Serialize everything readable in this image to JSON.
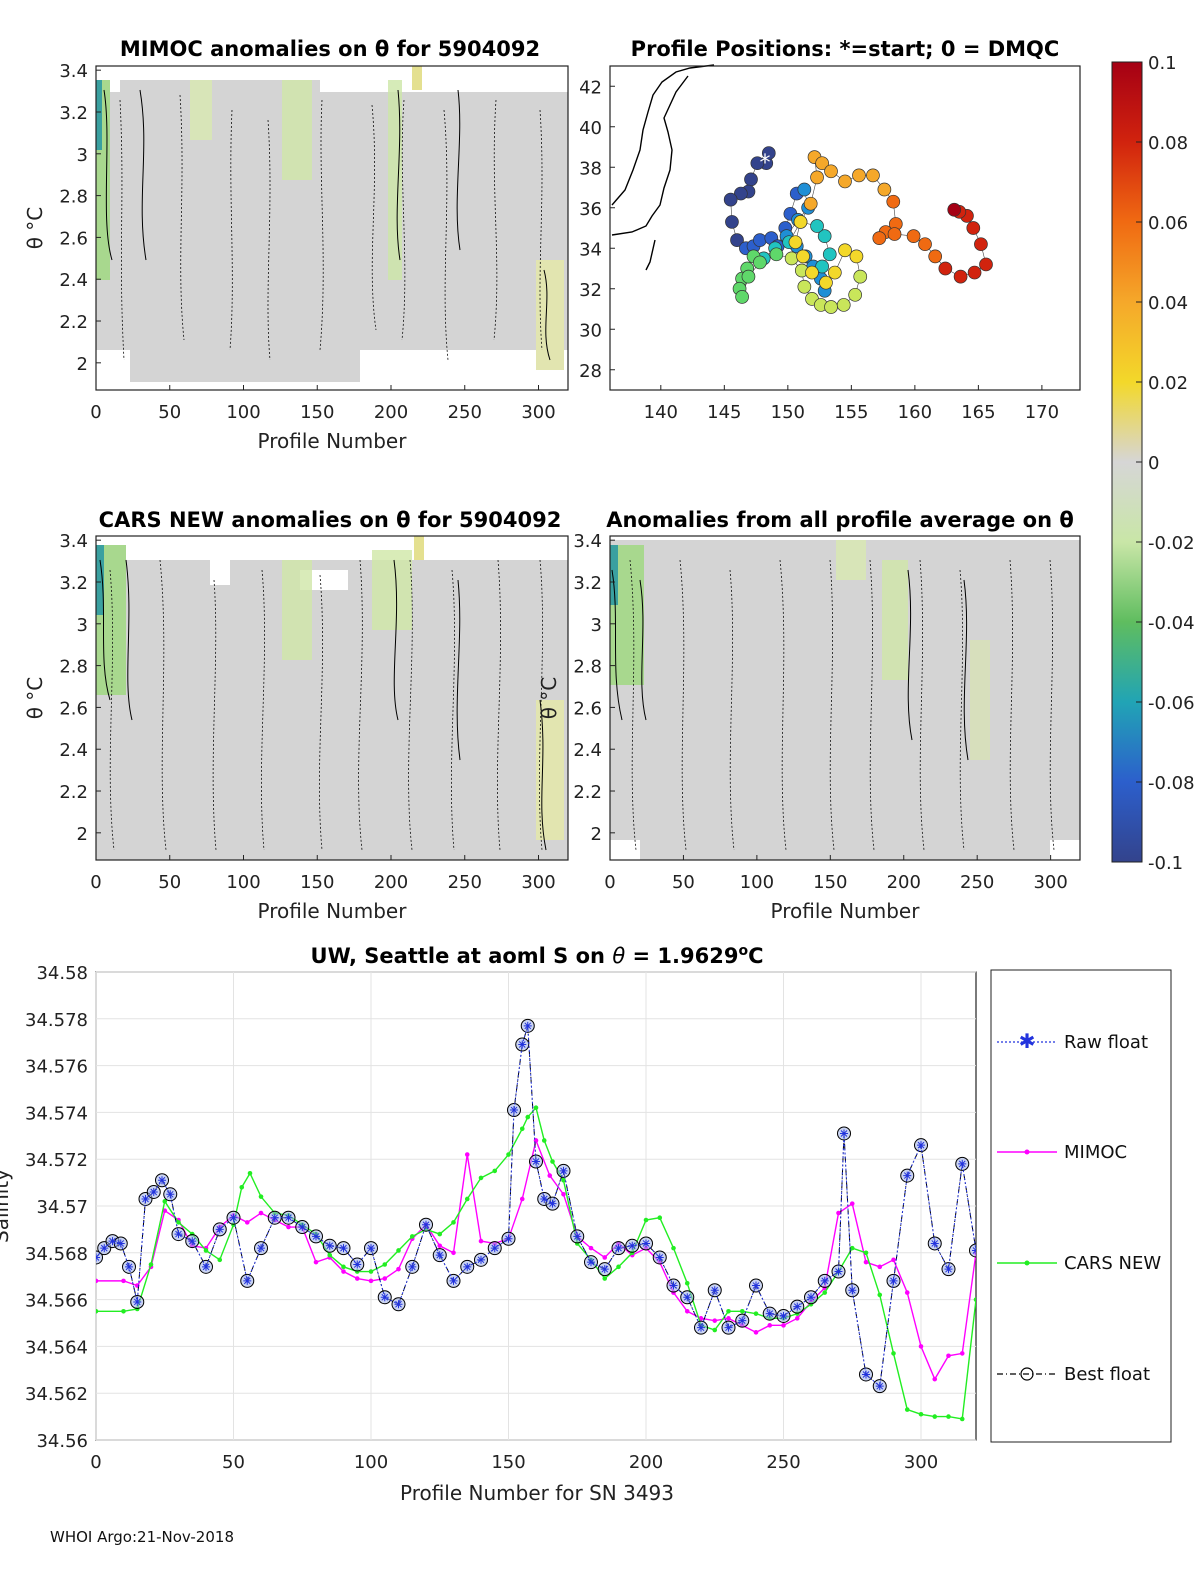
{
  "footer": "WHOI Argo:21-Nov-2018",
  "panels": {
    "mimoc": {
      "title": "MIMOC anomalies on θ  for 5904092",
      "xlabel": "Profile Number",
      "ylabel": "θ °C",
      "xticks": [
        "0",
        "50",
        "100",
        "150",
        "200",
        "250",
        "300"
      ],
      "yticks": [
        "2",
        "2.2",
        "2.4",
        "2.6",
        "2.8",
        "3",
        "3.2",
        "3.4"
      ]
    },
    "positions": {
      "title": "Profile Positions: *=start; 0 = DMQC",
      "xticks": [
        "140",
        "145",
        "150",
        "155",
        "160",
        "165",
        "170"
      ],
      "yticks": [
        "28",
        "30",
        "32",
        "34",
        "36",
        "38",
        "40",
        "42"
      ]
    },
    "cars": {
      "title": "CARS NEW anomalies on θ for 5904092",
      "xlabel": "Profile Number",
      "ylabel": "θ °C",
      "xticks": [
        "0",
        "50",
        "100",
        "150",
        "200",
        "250",
        "300"
      ],
      "yticks": [
        "2",
        "2.2",
        "2.4",
        "2.6",
        "2.8",
        "3",
        "3.2",
        "3.4"
      ]
    },
    "allavg": {
      "title": "Anomalies from all profile average on θ",
      "xlabel": "Profile Number",
      "ylabel": "θ °C",
      "xticks": [
        "0",
        "50",
        "100",
        "150",
        "200",
        "250",
        "300"
      ],
      "yticks": [
        "2",
        "2.2",
        "2.4",
        "2.6",
        "2.8",
        "3",
        "3.2",
        "3.4"
      ]
    },
    "colorbar": {
      "ticks": [
        "0.1",
        "0.08",
        "0.06",
        "0.04",
        "0.02",
        "0",
        "-0.02",
        "-0.04",
        "-0.06",
        "-0.08",
        "-0.1"
      ]
    }
  },
  "chart_data": [
    {
      "type": "heatmap",
      "title": "MIMOC anomalies on θ  for 5904092",
      "xlabel": "Profile Number",
      "ylabel": "θ °C",
      "xlim": [
        0,
        320
      ],
      "ylim": [
        1.87,
        3.42
      ],
      "clim": [
        -0.1,
        0.1
      ]
    },
    {
      "type": "scatter",
      "title": "Profile Positions: *=start; 0 = DMQC",
      "xlim": [
        136,
        173
      ],
      "ylim": [
        27,
        43
      ],
      "track": [
        [
          148.3,
          38.2
        ],
        [
          148.5,
          38.7
        ],
        [
          147.6,
          38.2
        ],
        [
          147.1,
          37.4
        ],
        [
          146.9,
          36.8
        ],
        [
          146.3,
          36.7
        ],
        [
          145.5,
          36.4
        ],
        [
          145.6,
          35.3
        ],
        [
          146.0,
          34.4
        ],
        [
          146.7,
          34.0
        ],
        [
          147.3,
          34.1
        ],
        [
          147.8,
          34.4
        ],
        [
          148.7,
          34.5
        ],
        [
          149.2,
          34.1
        ],
        [
          149.8,
          35.0
        ],
        [
          150.2,
          35.7
        ],
        [
          150.7,
          36.7
        ],
        [
          151.3,
          36.9
        ],
        [
          151.6,
          36.0
        ],
        [
          150.8,
          35.4
        ],
        [
          149.9,
          34.6
        ],
        [
          150.7,
          34.1
        ],
        [
          151.4,
          33.6
        ],
        [
          152.0,
          33.1
        ],
        [
          152.6,
          32.5
        ],
        [
          152.9,
          31.9
        ],
        [
          152.7,
          33.1
        ],
        [
          153.3,
          33.7
        ],
        [
          152.9,
          34.6
        ],
        [
          152.3,
          35.1
        ],
        [
          151.0,
          35.3
        ],
        [
          150.1,
          34.3
        ],
        [
          149.0,
          34.0
        ],
        [
          148.1,
          33.5
        ],
        [
          147.3,
          33.6
        ],
        [
          146.8,
          33.0
        ],
        [
          146.4,
          32.5
        ],
        [
          146.2,
          32.0
        ],
        [
          146.4,
          31.6
        ],
        [
          146.9,
          32.6
        ],
        [
          147.8,
          33.3
        ],
        [
          149.1,
          33.7
        ],
        [
          150.3,
          33.5
        ],
        [
          151.1,
          32.9
        ],
        [
          151.3,
          32.1
        ],
        [
          151.9,
          31.5
        ],
        [
          152.6,
          31.2
        ],
        [
          153.4,
          31.1
        ],
        [
          154.4,
          31.2
        ],
        [
          155.3,
          31.7
        ],
        [
          155.7,
          32.6
        ],
        [
          155.4,
          33.6
        ],
        [
          154.5,
          33.9
        ],
        [
          153.7,
          32.8
        ],
        [
          153.0,
          32.3
        ],
        [
          151.9,
          32.8
        ],
        [
          151.2,
          33.6
        ],
        [
          150.6,
          34.3
        ],
        [
          151.0,
          35.3
        ],
        [
          151.8,
          36.2
        ],
        [
          152.3,
          37.5
        ],
        [
          152.1,
          38.5
        ],
        [
          152.7,
          38.2
        ],
        [
          153.4,
          37.8
        ],
        [
          154.5,
          37.3
        ],
        [
          155.6,
          37.6
        ],
        [
          156.7,
          37.6
        ],
        [
          157.6,
          36.9
        ],
        [
          158.3,
          36.3
        ],
        [
          158.5,
          35.2
        ],
        [
          157.7,
          34.8
        ],
        [
          157.2,
          34.5
        ],
        [
          158.4,
          34.7
        ],
        [
          159.9,
          34.6
        ],
        [
          160.8,
          34.2
        ],
        [
          161.6,
          33.6
        ],
        [
          162.4,
          33.0
        ],
        [
          163.6,
          32.6
        ],
        [
          164.7,
          32.8
        ],
        [
          165.6,
          33.2
        ],
        [
          165.2,
          34.2
        ],
        [
          164.6,
          35.0
        ],
        [
          164.1,
          35.6
        ],
        [
          163.5,
          35.8
        ],
        [
          163.1,
          35.9
        ]
      ]
    },
    {
      "type": "heatmap",
      "title": "CARS NEW anomalies on θ for 5904092",
      "xlabel": "Profile Number",
      "ylabel": "θ °C",
      "xlim": [
        0,
        320
      ],
      "ylim": [
        1.87,
        3.42
      ]
    },
    {
      "type": "heatmap",
      "title": "Anomalies from all profile average on θ",
      "xlabel": "Profile Number",
      "ylabel": "θ °C",
      "xlim": [
        0,
        320
      ],
      "ylim": [
        1.87,
        3.42
      ]
    },
    {
      "type": "line",
      "title": "UW, Seattle at aoml S on θ = 1.9629°C",
      "xlabel": "Profile Number for SN 3493",
      "ylabel": "Salinity",
      "xlim": [
        0,
        320
      ],
      "ylim": [
        34.56,
        34.58
      ],
      "xticks": [
        "0",
        "50",
        "100",
        "150",
        "200",
        "250",
        "300"
      ],
      "yticks": [
        "34.56",
        "34.562",
        "34.564",
        "34.566",
        "34.568",
        "34.57",
        "34.572",
        "34.574",
        "34.576",
        "34.578",
        "34.58"
      ],
      "series": [
        {
          "name": "Raw float",
          "color": "#2233dd",
          "x": [
            0,
            3,
            6,
            9,
            12,
            15,
            18,
            21,
            24,
            27,
            30,
            35,
            40,
            45,
            50,
            55,
            60,
            65,
            70,
            75,
            80,
            85,
            90,
            95,
            100,
            105,
            110,
            115,
            120,
            125,
            130,
            135,
            140,
            145,
            150,
            152,
            155,
            157,
            160,
            163,
            166,
            170,
            175,
            180,
            185,
            190,
            195,
            200,
            205,
            210,
            215,
            220,
            225,
            230,
            235,
            240,
            245,
            250,
            255,
            260,
            265,
            270,
            272,
            275,
            280,
            285,
            290,
            295,
            300,
            305,
            310,
            315,
            320
          ],
          "values": [
            34.5678,
            34.5682,
            34.5685,
            34.5684,
            34.5674,
            34.5659,
            34.5703,
            34.5706,
            34.5711,
            34.5705,
            34.5688,
            34.5685,
            34.5674,
            34.569,
            34.5695,
            34.5668,
            34.5682,
            34.5695,
            34.5695,
            34.5691,
            34.5687,
            34.5683,
            34.5682,
            34.5675,
            34.5682,
            34.5661,
            34.5658,
            34.5674,
            34.5692,
            34.5679,
            34.5668,
            34.5674,
            34.5677,
            34.5682,
            34.5686,
            34.5741,
            34.5769,
            34.5777,
            34.5719,
            34.5703,
            34.5701,
            34.5715,
            34.5687,
            34.5676,
            34.5673,
            34.5682,
            34.5683,
            34.5684,
            34.5678,
            34.5666,
            34.5661,
            34.5648,
            34.5664,
            34.5648,
            34.5651,
            34.5666,
            34.5654,
            34.5653,
            34.5657,
            34.5661,
            34.5668,
            34.5672,
            34.5731,
            34.5664,
            34.5628,
            34.5623,
            34.5668,
            34.5713,
            34.5726,
            34.5684,
            34.5673,
            34.5718,
            34.5681
          ]
        },
        {
          "name": "MIMOC",
          "color": "#ff00ff",
          "x": [
            0,
            10,
            15,
            20,
            25,
            30,
            35,
            40,
            45,
            50,
            55,
            60,
            65,
            70,
            75,
            80,
            85,
            90,
            95,
            100,
            105,
            110,
            115,
            120,
            125,
            130,
            135,
            140,
            145,
            150,
            155,
            160,
            165,
            170,
            175,
            180,
            185,
            190,
            195,
            200,
            205,
            210,
            215,
            220,
            225,
            230,
            235,
            240,
            245,
            250,
            255,
            260,
            265,
            270,
            275,
            280,
            285,
            290,
            295,
            300,
            305,
            310,
            315,
            320
          ],
          "values": [
            34.5668,
            34.5668,
            34.5666,
            34.5674,
            34.5698,
            34.5694,
            34.5683,
            34.5682,
            34.5691,
            34.5696,
            34.5693,
            34.5697,
            34.5694,
            34.5691,
            34.5691,
            34.5676,
            34.5678,
            34.5672,
            34.5669,
            34.5668,
            34.5669,
            34.5673,
            34.5686,
            34.5692,
            34.5683,
            34.568,
            34.5722,
            34.5685,
            34.5684,
            34.5686,
            34.5703,
            34.5728,
            34.5713,
            34.5705,
            34.5687,
            34.5682,
            34.5678,
            34.5684,
            34.5679,
            34.5682,
            34.5676,
            34.5663,
            34.5655,
            34.5652,
            34.5651,
            34.5652,
            34.5649,
            34.5646,
            34.5649,
            34.5649,
            34.5652,
            34.5659,
            34.5665,
            34.5697,
            34.5701,
            34.5676,
            34.5674,
            34.5677,
            34.5663,
            34.564,
            34.5626,
            34.5636,
            34.5637,
            34.568
          ]
        },
        {
          "name": "CARS NEW",
          "color": "#22ee22",
          "x": [
            0,
            10,
            15,
            20,
            25,
            30,
            35,
            40,
            45,
            50,
            53,
            56,
            60,
            65,
            70,
            75,
            80,
            85,
            90,
            95,
            100,
            105,
            110,
            115,
            120,
            125,
            130,
            135,
            140,
            145,
            150,
            155,
            157,
            160,
            163,
            166,
            170,
            175,
            180,
            185,
            190,
            195,
            200,
            205,
            210,
            215,
            220,
            225,
            230,
            235,
            240,
            245,
            250,
            255,
            260,
            265,
            270,
            275,
            280,
            285,
            290,
            295,
            300,
            305,
            310,
            315,
            320
          ],
          "values": [
            34.5655,
            34.5655,
            34.5656,
            34.5675,
            34.5702,
            34.5693,
            34.5688,
            34.5681,
            34.5677,
            34.5692,
            34.5708,
            34.5714,
            34.5704,
            34.5697,
            34.5696,
            34.5692,
            34.5688,
            34.5679,
            34.5674,
            34.5672,
            34.5672,
            34.5675,
            34.5681,
            34.5687,
            34.569,
            34.5688,
            34.5693,
            34.5703,
            34.5712,
            34.5715,
            34.5722,
            34.5733,
            34.5738,
            34.5742,
            34.5728,
            34.5719,
            34.5711,
            34.5684,
            34.5677,
            34.5669,
            34.5674,
            34.568,
            34.5694,
            34.5695,
            34.5682,
            34.5667,
            34.5649,
            34.5647,
            34.5655,
            34.5655,
            34.5654,
            34.5652,
            34.5652,
            34.5654,
            34.5658,
            34.5663,
            34.5672,
            34.5682,
            34.568,
            34.5662,
            34.5637,
            34.5613,
            34.5611,
            34.561,
            34.561,
            34.5609,
            34.566
          ]
        },
        {
          "name": "Best float",
          "color": "#000000",
          "x": [
            0,
            3,
            6,
            9,
            12,
            15,
            18,
            21,
            24,
            27,
            30,
            35,
            40,
            45,
            50,
            55,
            60,
            65,
            70,
            75,
            80,
            85,
            90,
            95,
            100,
            105,
            110,
            115,
            120,
            125,
            130,
            135,
            140,
            145,
            150,
            152,
            155,
            157,
            160,
            163,
            166,
            170,
            175,
            180,
            185,
            190,
            195,
            200,
            205,
            210,
            215,
            220,
            225,
            230,
            235,
            240,
            245,
            250,
            255,
            260,
            265,
            270,
            272,
            275,
            280,
            285,
            290,
            295,
            300,
            305,
            310,
            315,
            320
          ],
          "values": [
            34.5678,
            34.5682,
            34.5685,
            34.5684,
            34.5674,
            34.5659,
            34.5703,
            34.5706,
            34.5711,
            34.5705,
            34.5688,
            34.5685,
            34.5674,
            34.569,
            34.5695,
            34.5668,
            34.5682,
            34.5695,
            34.5695,
            34.5691,
            34.5687,
            34.5683,
            34.5682,
            34.5675,
            34.5682,
            34.5661,
            34.5658,
            34.5674,
            34.5692,
            34.5679,
            34.5668,
            34.5674,
            34.5677,
            34.5682,
            34.5686,
            34.5741,
            34.5769,
            34.5777,
            34.5719,
            34.5703,
            34.5701,
            34.5715,
            34.5687,
            34.5676,
            34.5673,
            34.5682,
            34.5683,
            34.5684,
            34.5678,
            34.5666,
            34.5661,
            34.5648,
            34.5664,
            34.5648,
            34.5651,
            34.5666,
            34.5654,
            34.5653,
            34.5657,
            34.5661,
            34.5668,
            34.5672,
            34.5731,
            34.5664,
            34.5628,
            34.5623,
            34.5668,
            34.5713,
            34.5726,
            34.5684,
            34.5673,
            34.5718,
            34.5681
          ]
        }
      ]
    }
  ],
  "bottom": {
    "title_prefix": "UW, Seattle at aoml S on ",
    "title_theta": "θ",
    "title_eq": " = 1.9629",
    "title_deg": "o",
    "title_unit": "C",
    "xlabel": "Profile Number for SN 3493",
    "ylabel": "Salinity",
    "legend": [
      "Raw float",
      "MIMOC",
      "CARS NEW",
      "Best float"
    ]
  }
}
